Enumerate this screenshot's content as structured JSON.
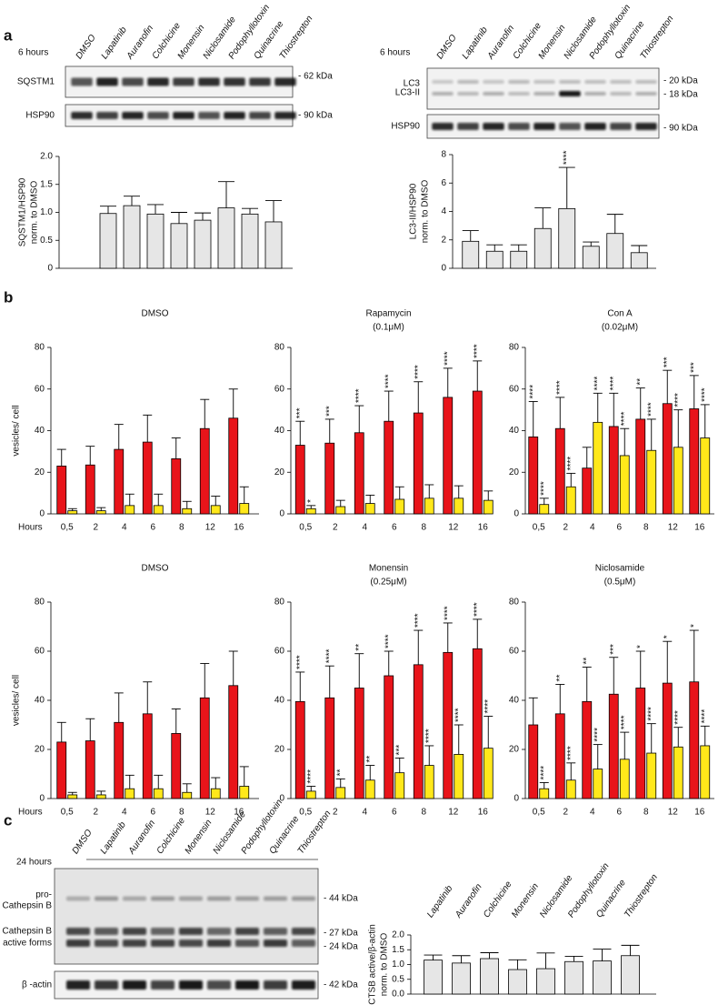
{
  "panels": [
    "a",
    "b",
    "c"
  ],
  "blots": [
    {
      "time": "6 hours",
      "rows": [
        {
          "labels": [
            "SQSTM1"
          ],
          "markers": [
            "- 62 kDa"
          ]
        },
        {
          "labels": [
            "HSP90"
          ],
          "markers": [
            "- 90 kDa"
          ]
        }
      ]
    },
    {
      "time": "6 hours",
      "rows": [
        {
          "labels": [
            "LC3",
            "LC3-II"
          ],
          "markers": [
            "- 20 kDa",
            "- 18 kDa"
          ]
        },
        {
          "labels": [
            "HSP90"
          ],
          "markers": [
            "- 90 kDa"
          ]
        }
      ]
    },
    {
      "time": "24 hours",
      "lanes": [
        "DMSO",
        "Lapatinib",
        "Auranofin",
        "Colchicine",
        "Monensin",
        "Niclosamide",
        "Podophyllotoxin",
        "Quinacrine",
        "Thiostrepton"
      ],
      "rows": [
        {
          "labels": [
            "pro-",
            "Cathepsin B",
            "Cathepsin B",
            "active forms"
          ],
          "markers": [
            "- 44 kDa",
            "- 27 kDa",
            "- 24 kDa"
          ]
        },
        {
          "labels": [
            "β -actin"
          ],
          "markers": [
            "- 42 kDa"
          ]
        }
      ]
    }
  ],
  "chart_data": [
    {
      "type": "bar",
      "y_label": [
        "SQSTM1/HSP90",
        "norm. to DMSO"
      ],
      "categories": [
        "DMSO",
        "Lapatinib",
        "Auranofin",
        "Colchicine",
        "Monensin",
        "Niclosamide",
        "Podophyllotoxin",
        "Quinacrine",
        "Thiostrepton"
      ],
      "series": [
        {
          "color": "#e6e6e6",
          "values": [
            null,
            0.98,
            1.12,
            0.97,
            0.8,
            0.86,
            1.08,
            0.97,
            0.83
          ],
          "errors": [
            null,
            0.13,
            0.17,
            0.17,
            0.2,
            0.13,
            0.47,
            0.1,
            0.38
          ]
        }
      ],
      "ylim": [
        0,
        2
      ],
      "yticks": [
        0,
        0.5,
        {
          "value": 1,
          "label": "1.0"
        },
        1.5,
        {
          "value": 2,
          "label": "2.0"
        }
      ]
    },
    {
      "type": "bar",
      "y_label": [
        "LC3-II/HSP90",
        "norm. to DMSO"
      ],
      "categories": [
        "DMSO",
        "Lapatinib",
        "Auranofin",
        "Colchicine",
        "Monensin",
        "Niclosamide",
        "Podophyllotoxin",
        "Quinacrine",
        "Thiostrepton"
      ],
      "series": [
        {
          "color": "#e6e6e6",
          "values": [
            null,
            1.9,
            1.2,
            1.2,
            2.8,
            4.2,
            1.55,
            2.45,
            1.1
          ],
          "errors": [
            null,
            0.75,
            0.45,
            0.45,
            1.45,
            2.9,
            0.3,
            1.35,
            0.5
          ],
          "annotations": [
            null,
            null,
            null,
            null,
            null,
            "****",
            null,
            null,
            null
          ]
        }
      ],
      "ylim": [
        0,
        8
      ],
      "yticks": [
        0,
        2,
        4,
        6,
        8
      ]
    },
    {
      "type": "bar",
      "title": "DMSO",
      "y_label": [
        "vesicles/ cell"
      ],
      "x_label": "Hours",
      "categories": [
        "0,5",
        "2",
        "4",
        "6",
        "8",
        "12",
        "16"
      ],
      "series": [
        {
          "color": "#e8141a",
          "values": [
            23,
            23.5,
            31,
            34.5,
            26.5,
            41,
            46
          ],
          "errors": [
            8,
            9,
            12,
            13,
            10,
            14,
            14
          ]
        },
        {
          "color": "#ffe81a",
          "values": [
            1.5,
            1.5,
            4,
            4,
            2.5,
            4,
            5
          ],
          "errors": [
            1,
            1.5,
            5.5,
            5.5,
            3.5,
            4.5,
            8
          ]
        }
      ],
      "ylim": [
        0,
        80
      ],
      "yticks": [
        0,
        20,
        40,
        60,
        80
      ]
    },
    {
      "type": "bar",
      "title": "Rapamycin",
      "subtitle": "(0.1μM)",
      "categories": [
        "0,5",
        "2",
        "4",
        "6",
        "8",
        "12",
        "16"
      ],
      "series": [
        {
          "color": "#e8141a",
          "values": [
            33,
            34,
            39,
            44.5,
            48.5,
            56,
            59
          ],
          "errors": [
            11.5,
            11.5,
            13,
            14.5,
            15,
            14,
            14.5
          ],
          "annotations": [
            "***",
            "***",
            "****",
            "****",
            "****",
            "****",
            "****"
          ]
        },
        {
          "color": "#ffe81a",
          "values": [
            2.5,
            3.5,
            5,
            7,
            7.5,
            7.5,
            6.5
          ],
          "errors": [
            1.5,
            3,
            4,
            6,
            6.5,
            6,
            4.5
          ],
          "annotations": [
            "*",
            null,
            null,
            null,
            null,
            null,
            null
          ]
        }
      ],
      "ylim": [
        0,
        80
      ],
      "yticks": [
        0,
        20,
        40,
        60,
        80
      ]
    },
    {
      "type": "bar",
      "title": "Con A",
      "subtitle": "(0.02μM)",
      "categories": [
        "0,5",
        "2",
        "4",
        "6",
        "8",
        "12",
        "16"
      ],
      "series": [
        {
          "color": "#e8141a",
          "values": [
            37,
            41,
            22,
            42,
            45.5,
            53,
            50.5
          ],
          "errors": [
            17,
            15,
            10,
            16,
            15,
            16,
            16
          ],
          "annotations": [
            "****",
            "****",
            null,
            "****",
            "**",
            "***",
            "***"
          ]
        },
        {
          "color": "#ffe81a",
          "values": [
            4.5,
            13,
            44,
            28,
            30.5,
            32,
            36.5
          ],
          "errors": [
            3,
            6.5,
            14,
            13,
            15,
            18,
            16
          ],
          "annotations": [
            "****",
            "****",
            "****",
            "****",
            "****",
            "****",
            "****"
          ]
        }
      ],
      "ylim": [
        0,
        80
      ],
      "yticks": [
        0,
        20,
        40,
        60,
        80
      ]
    },
    {
      "type": "bar",
      "title": "DMSO",
      "y_label": [
        "vesicles/ cell"
      ],
      "x_label": "Hours",
      "categories": [
        "0,5",
        "2",
        "4",
        "6",
        "8",
        "12",
        "16"
      ],
      "series": [
        {
          "color": "#e8141a",
          "values": [
            23,
            23.5,
            31,
            34.5,
            26.5,
            41,
            46
          ],
          "errors": [
            8,
            9,
            12,
            13,
            10,
            14,
            14
          ]
        },
        {
          "color": "#ffe81a",
          "values": [
            1.5,
            1.5,
            4,
            4,
            2.5,
            4,
            5
          ],
          "errors": [
            1,
            1.5,
            5.5,
            5.5,
            3.5,
            4.5,
            8
          ]
        }
      ],
      "ylim": [
        0,
        80
      ],
      "yticks": [
        0,
        20,
        40,
        60,
        80
      ]
    },
    {
      "type": "bar",
      "title": "Monensin",
      "subtitle": "(0.25μM)",
      "categories": [
        "0,5",
        "2",
        "4",
        "6",
        "8",
        "12",
        "16"
      ],
      "series": [
        {
          "color": "#e8141a",
          "values": [
            39.5,
            41,
            45,
            50,
            54.5,
            59.5,
            61
          ],
          "errors": [
            12,
            13,
            14,
            10,
            14,
            12,
            12
          ],
          "annotations": [
            "****",
            "****",
            "**",
            "****",
            "****",
            "****",
            "****"
          ]
        },
        {
          "color": "#ffe81a",
          "values": [
            3,
            4.5,
            7.5,
            10.5,
            13.5,
            18,
            20.5
          ],
          "errors": [
            2,
            3.5,
            6,
            6,
            8,
            12,
            13
          ],
          "annotations": [
            "****",
            "**",
            "**",
            "***",
            "****",
            "****",
            "****"
          ]
        }
      ],
      "ylim": [
        0,
        80
      ],
      "yticks": [
        0,
        20,
        40,
        60,
        80
      ]
    },
    {
      "type": "bar",
      "title": "Niclosamide",
      "subtitle": "(0.5μM)",
      "categories": [
        "0,5",
        "2",
        "4",
        "6",
        "8",
        "12",
        "16"
      ],
      "series": [
        {
          "color": "#e8141a",
          "values": [
            30,
            34.5,
            39.5,
            42.5,
            45,
            47,
            47.5
          ],
          "errors": [
            11,
            12,
            14,
            15,
            15,
            17,
            21
          ],
          "annotations": [
            null,
            "**",
            "**",
            "***",
            "*",
            "*",
            "*"
          ]
        },
        {
          "color": "#ffe81a",
          "values": [
            4,
            7.5,
            12,
            16,
            18.5,
            21,
            21.5
          ],
          "errors": [
            2.5,
            7,
            10,
            11,
            12,
            8,
            8
          ],
          "annotations": [
            "****",
            "****",
            "****",
            "****",
            "****",
            "****",
            "****"
          ]
        }
      ],
      "ylim": [
        0,
        80
      ],
      "yticks": [
        0,
        20,
        40,
        60,
        80
      ]
    },
    {
      "type": "bar",
      "y_label": [
        "CTSB active/β-actin",
        "norm. to DMSO"
      ],
      "categories": [
        "Lapatinib",
        "Auranofin",
        "Colchicine",
        "Monensin",
        "Niclosamide",
        "Podophyllotoxin",
        "Quinacrine",
        "Thiostrepton"
      ],
      "series": [
        {
          "color": "#e6e6e6",
          "values": [
            1.15,
            1.05,
            1.2,
            0.83,
            0.86,
            1.1,
            1.12,
            1.3
          ],
          "errors": [
            0.17,
            0.25,
            0.2,
            0.33,
            0.53,
            0.18,
            0.4,
            0.35
          ]
        }
      ],
      "ylim": [
        0,
        2
      ],
      "yticks": [
        {
          "value": 0,
          "label": "0.0"
        },
        0.5,
        {
          "value": 1,
          "label": "1.0"
        },
        1.5,
        {
          "value": 2,
          "label": "2.0"
        }
      ]
    }
  ]
}
